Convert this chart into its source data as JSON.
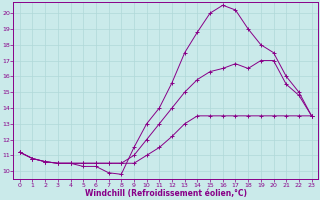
{
  "xlabel": "Windchill (Refroidissement éolien,°C)",
  "bg_color": "#caeaea",
  "line_color": "#880088",
  "xlim": [
    -0.5,
    23.5
  ],
  "ylim": [
    9.5,
    20.7
  ],
  "curve1_y": [
    11.2,
    10.8,
    10.6,
    10.5,
    10.5,
    10.5,
    10.5,
    10.5,
    10.5,
    10.5,
    11.0,
    11.5,
    12.2,
    13.0,
    13.5,
    13.5,
    13.5,
    13.5,
    13.5,
    13.5,
    13.5,
    13.5,
    13.5,
    13.5
  ],
  "curve2_y": [
    11.2,
    10.8,
    10.6,
    10.5,
    10.5,
    10.5,
    10.5,
    10.5,
    10.5,
    11.0,
    12.0,
    13.0,
    14.0,
    15.0,
    15.8,
    16.3,
    16.5,
    16.8,
    16.5,
    17.0,
    17.0,
    15.5,
    14.8,
    13.5
  ],
  "curve3_y": [
    11.2,
    10.8,
    10.6,
    10.5,
    10.5,
    10.3,
    10.3,
    9.9,
    9.8,
    11.5,
    13.0,
    14.0,
    15.6,
    17.5,
    18.8,
    20.0,
    20.5,
    20.2,
    19.0,
    18.0,
    17.5,
    16.0,
    15.0,
    13.5
  ],
  "x_ticks": [
    0,
    1,
    2,
    3,
    4,
    5,
    6,
    7,
    8,
    9,
    10,
    11,
    12,
    13,
    14,
    15,
    16,
    17,
    18,
    19,
    20,
    21,
    22,
    23
  ],
  "y_ticks": [
    10,
    11,
    12,
    13,
    14,
    15,
    16,
    17,
    18,
    19,
    20
  ],
  "grid_color": "#b0d8d8",
  "marker": "+"
}
